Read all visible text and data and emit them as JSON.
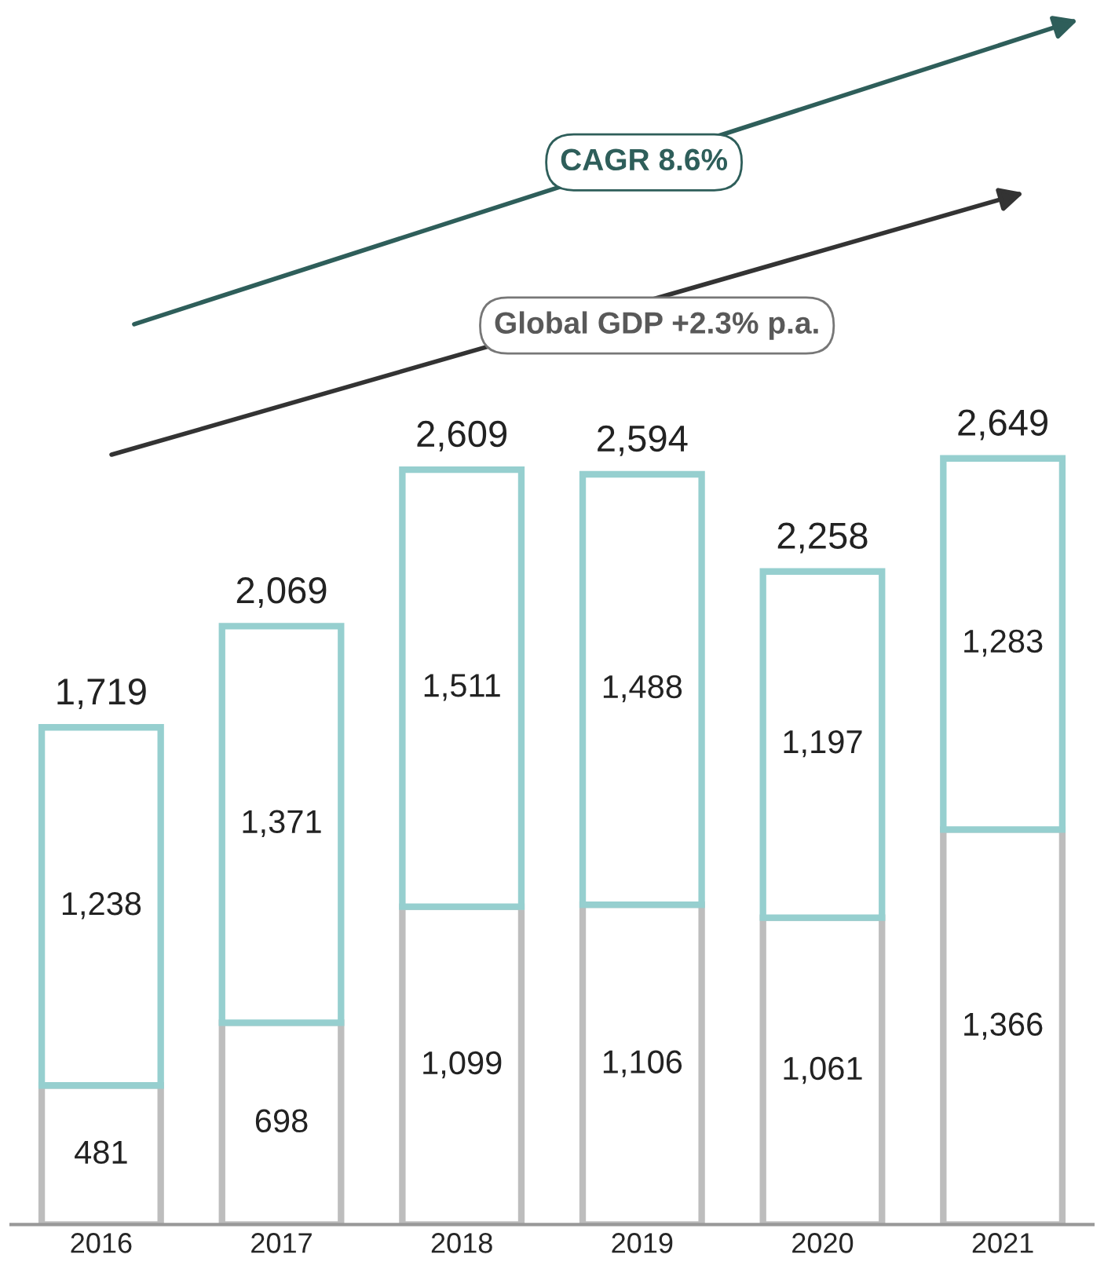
{
  "chart_data": {
    "type": "bar",
    "stacked": true,
    "categories": [
      "2016",
      "2017",
      "2018",
      "2019",
      "2020",
      "2021"
    ],
    "series": [
      {
        "color": "#bdbdbd",
        "values": [
          481,
          698,
          1099,
          1106,
          1061,
          1366
        ],
        "value_labels": [
          "481",
          "698",
          "1,099",
          "1,106",
          "1,061",
          "1,366"
        ]
      },
      {
        "color": "#96cfcf",
        "values": [
          1238,
          1371,
          1511,
          1488,
          1197,
          1283
        ],
        "value_labels": [
          "1,238",
          "1,371",
          "1,511",
          "1,488",
          "1,197",
          "1,283"
        ]
      }
    ],
    "totals": [
      "1,719",
      "2,069",
      "2,609",
      "2,594",
      "2,258",
      "2,649"
    ],
    "annotations": [
      "CAGR 8.6%",
      "Global GDP +2.3% p.a."
    ]
  }
}
